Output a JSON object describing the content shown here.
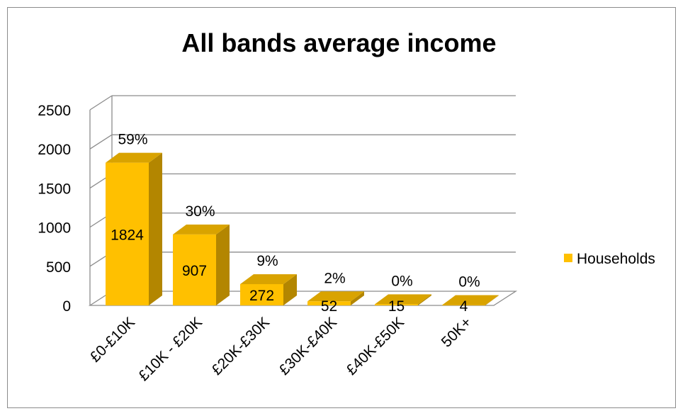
{
  "chart_data": {
    "type": "bar",
    "title": "All bands average income",
    "categories": [
      "£0-£10K",
      "£10K - £20K",
      "£20K-£30K",
      "£30K-£40K",
      "£40K-£50K",
      "50K+"
    ],
    "series": [
      {
        "name": "Households",
        "values": [
          1824,
          907,
          272,
          52,
          15,
          4
        ],
        "percent_labels": [
          "59%",
          "30%",
          "9%",
          "2%",
          "0%",
          "0%"
        ]
      }
    ],
    "yticks": [
      "0",
      "500",
      "1000",
      "1500",
      "2000",
      "2500"
    ],
    "ylim": [
      0,
      2500
    ],
    "grid": true,
    "legend": "right",
    "colors": {
      "bar_front": "#FFC000",
      "bar_side": "#B38600",
      "bar_top": "#D9A300"
    }
  }
}
